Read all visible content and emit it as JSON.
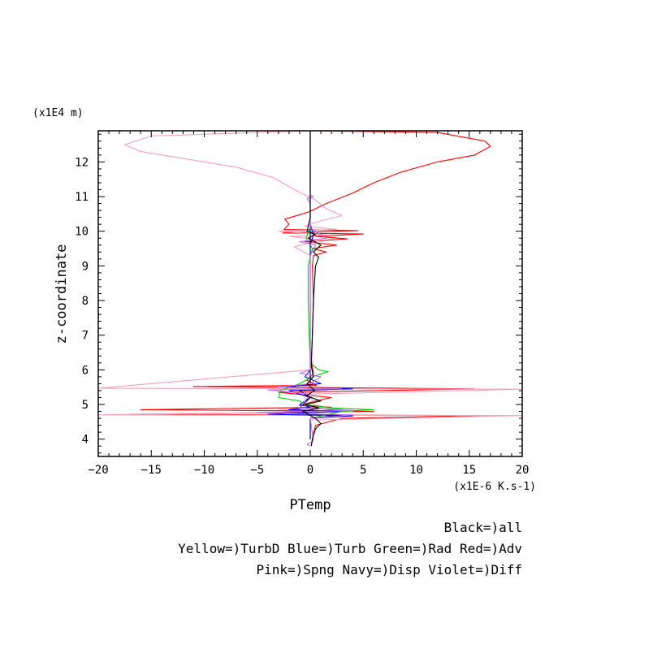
{
  "chart_data": {
    "type": "line",
    "title": "",
    "xlabel": "PTemp",
    "ylabel": "z-coordinate",
    "x_units": "(x1E-6 K.s-1)",
    "y_units": "(x1E4 m)",
    "xlim": [
      -20,
      20
    ],
    "ylim": [
      3.5,
      12.9
    ],
    "x_ticks": [
      "-20",
      "-15",
      "-10",
      "-5",
      "0",
      "5",
      "10",
      "15",
      "20"
    ],
    "y_ticks": [
      "4",
      "5",
      "6",
      "7",
      "8",
      "9",
      "10",
      "11",
      "12"
    ],
    "grid": false,
    "legend": {
      "placement": "below-right",
      "lines": [
        "Black=)all",
        "Yellow=)TurbD Blue=)Turb Green=)Rad Red=)Adv",
        "Pink=)Spng Navy=)Disp Violet=)Diff"
      ]
    },
    "series": [
      {
        "name": "Red=)Adv",
        "color": "#ff0000",
        "points": [
          [
            0,
            12.9
          ],
          [
            12,
            12.85
          ],
          [
            16.5,
            12.6
          ],
          [
            17,
            12.45
          ],
          [
            15.5,
            12.2
          ],
          [
            12,
            12.0
          ],
          [
            8.5,
            11.7
          ],
          [
            6,
            11.4
          ],
          [
            4,
            11.1
          ],
          [
            1.5,
            10.8
          ],
          [
            -0.2,
            10.55
          ],
          [
            -2.4,
            10.35
          ],
          [
            -2,
            10.2
          ],
          [
            -2.5,
            10.05
          ],
          [
            4.5,
            10.02
          ],
          [
            -2.6,
            9.95
          ],
          [
            5,
            9.92
          ],
          [
            0.5,
            9.85
          ],
          [
            3.5,
            9.78
          ],
          [
            -0.5,
            9.7
          ],
          [
            2.5,
            9.6
          ],
          [
            0.2,
            9.5
          ],
          [
            1.5,
            9.4
          ],
          [
            0.3,
            9.3
          ],
          [
            0.2,
            9.0
          ],
          [
            0.3,
            8.0
          ],
          [
            0.2,
            7.0
          ],
          [
            0.1,
            6.3
          ],
          [
            0.3,
            5.9
          ],
          [
            -0.3,
            5.7
          ],
          [
            0.6,
            5.55
          ],
          [
            -11,
            5.52
          ],
          [
            15.5,
            5.45
          ],
          [
            -3,
            5.35
          ],
          [
            2,
            5.2
          ],
          [
            0.5,
            5.1
          ],
          [
            -1,
            4.97
          ],
          [
            2,
            4.92
          ],
          [
            -16,
            4.85
          ],
          [
            6,
            4.8
          ],
          [
            -17,
            4.72
          ],
          [
            16,
            4.68
          ],
          [
            3,
            4.6
          ],
          [
            0.5,
            4.4
          ],
          [
            0.2,
            4.0
          ],
          [
            0.1,
            3.8
          ]
        ]
      },
      {
        "name": "Pink=)Spng",
        "color": "#f4a0b8",
        "points": [
          [
            0,
            12.9
          ],
          [
            -15,
            12.75
          ],
          [
            -17.5,
            12.5
          ],
          [
            -16,
            12.3
          ],
          [
            -12,
            12.1
          ],
          [
            -7,
            11.85
          ],
          [
            -3.5,
            11.55
          ],
          [
            -1.5,
            11.2
          ],
          [
            0.5,
            10.9
          ],
          [
            1.5,
            10.65
          ],
          [
            3,
            10.45
          ],
          [
            1,
            10.3
          ],
          [
            -0.5,
            10.15
          ],
          [
            2.5,
            10.05
          ],
          [
            -3,
            10.0
          ],
          [
            1.5,
            9.9
          ],
          [
            -2,
            9.85
          ],
          [
            1,
            9.75
          ],
          [
            -1.5,
            9.55
          ],
          [
            0,
            9.3
          ],
          [
            0,
            8.0
          ],
          [
            0,
            6.0
          ],
          [
            -20,
            5.47
          ],
          [
            20,
            5.44
          ],
          [
            0,
            5.3
          ],
          [
            0.3,
            5.0
          ],
          [
            1.5,
            4.92
          ],
          [
            -3,
            4.86
          ],
          [
            4,
            4.8
          ],
          [
            -20,
            4.7
          ],
          [
            20,
            4.68
          ],
          [
            0,
            4.55
          ],
          [
            0,
            4.0
          ]
        ]
      },
      {
        "name": "Blue=)Turb",
        "color": "#0000ff",
        "points": [
          [
            0,
            12.9
          ],
          [
            0,
            10.2
          ],
          [
            0.3,
            9.9
          ],
          [
            0,
            9.6
          ],
          [
            0,
            6.0
          ],
          [
            -0.5,
            5.8
          ],
          [
            1,
            5.6
          ],
          [
            -3,
            5.5
          ],
          [
            4,
            5.45
          ],
          [
            -2,
            5.4
          ],
          [
            0,
            5.2
          ],
          [
            -1,
            5.0
          ],
          [
            0,
            4.92
          ],
          [
            -2,
            4.85
          ],
          [
            3,
            4.8
          ],
          [
            -4,
            4.72
          ],
          [
            4,
            4.67
          ],
          [
            0,
            4.6
          ],
          [
            0,
            4.0
          ]
        ]
      },
      {
        "name": "Green=)Rad",
        "color": "#00cc00",
        "points": [
          [
            0,
            12.9
          ],
          [
            0,
            10.1
          ],
          [
            -0.4,
            9.8
          ],
          [
            0.2,
            9.5
          ],
          [
            -0.2,
            9.0
          ],
          [
            -0.2,
            8.0
          ],
          [
            -0.1,
            7.0
          ],
          [
            0,
            6.2
          ],
          [
            0.8,
            6.0
          ],
          [
            1.7,
            5.95
          ],
          [
            0.2,
            5.8
          ],
          [
            -1,
            5.6
          ],
          [
            -2.8,
            5.4
          ],
          [
            -3,
            5.2
          ],
          [
            -1,
            5.1
          ],
          [
            -0.5,
            5.0
          ],
          [
            2,
            4.9
          ],
          [
            6,
            4.85
          ],
          [
            3,
            4.8
          ],
          [
            0,
            4.6
          ],
          [
            0,
            4.0
          ]
        ]
      },
      {
        "name": "Navy=)Disp",
        "color": "#000080",
        "points": [
          [
            0,
            12.9
          ],
          [
            0,
            6.0
          ],
          [
            0,
            5.6
          ],
          [
            -2,
            5.5
          ],
          [
            3,
            5.45
          ],
          [
            -1,
            5.4
          ],
          [
            0,
            5.2
          ],
          [
            -1,
            4.9
          ],
          [
            3,
            4.85
          ],
          [
            -3,
            4.75
          ],
          [
            3,
            4.7
          ],
          [
            0,
            4.6
          ],
          [
            0,
            4.0
          ]
        ]
      },
      {
        "name": "Violet=)Diff",
        "color": "#c070f0",
        "points": [
          [
            0,
            12.9
          ],
          [
            0,
            11.05
          ],
          [
            0.3,
            11.0
          ],
          [
            -0.3,
            10.95
          ],
          [
            0,
            10.8
          ],
          [
            0,
            10.1
          ],
          [
            1.5,
            9.8
          ],
          [
            -1,
            9.7
          ],
          [
            0.5,
            9.6
          ],
          [
            0,
            9.3
          ],
          [
            0,
            6.0
          ],
          [
            -1,
            5.9
          ],
          [
            1,
            5.8
          ],
          [
            0,
            5.6
          ],
          [
            -3,
            5.5
          ],
          [
            3,
            5.45
          ],
          [
            -4,
            5.42
          ],
          [
            0,
            5.3
          ],
          [
            -1,
            4.9
          ],
          [
            4,
            4.83
          ],
          [
            -5,
            4.77
          ],
          [
            4,
            4.7
          ],
          [
            0,
            4.6
          ],
          [
            0.3,
            3.95
          ],
          [
            -0.3,
            3.85
          ],
          [
            0,
            3.8
          ]
        ]
      },
      {
        "name": "Black=)all",
        "color": "#000000",
        "points": [
          [
            0,
            12.9
          ],
          [
            0,
            10.4
          ],
          [
            -0.3,
            10.0
          ],
          [
            0.5,
            9.9
          ],
          [
            -0.2,
            9.8
          ],
          [
            1,
            9.6
          ],
          [
            0.3,
            9.4
          ],
          [
            0.8,
            9.25
          ],
          [
            0.5,
            9.0
          ],
          [
            0.3,
            8.0
          ],
          [
            0.2,
            7.0
          ],
          [
            0.1,
            6.1
          ],
          [
            0.3,
            5.8
          ],
          [
            -0.3,
            5.6
          ],
          [
            0.4,
            5.4
          ],
          [
            -0.4,
            5.25
          ],
          [
            1,
            5.1
          ],
          [
            -0.5,
            5.0
          ],
          [
            0.8,
            4.9
          ],
          [
            -0.7,
            4.8
          ],
          [
            0.5,
            4.6
          ],
          [
            1,
            4.45
          ],
          [
            0.5,
            4.3
          ],
          [
            0.2,
            4.0
          ],
          [
            0.1,
            3.8
          ]
        ]
      }
    ]
  }
}
